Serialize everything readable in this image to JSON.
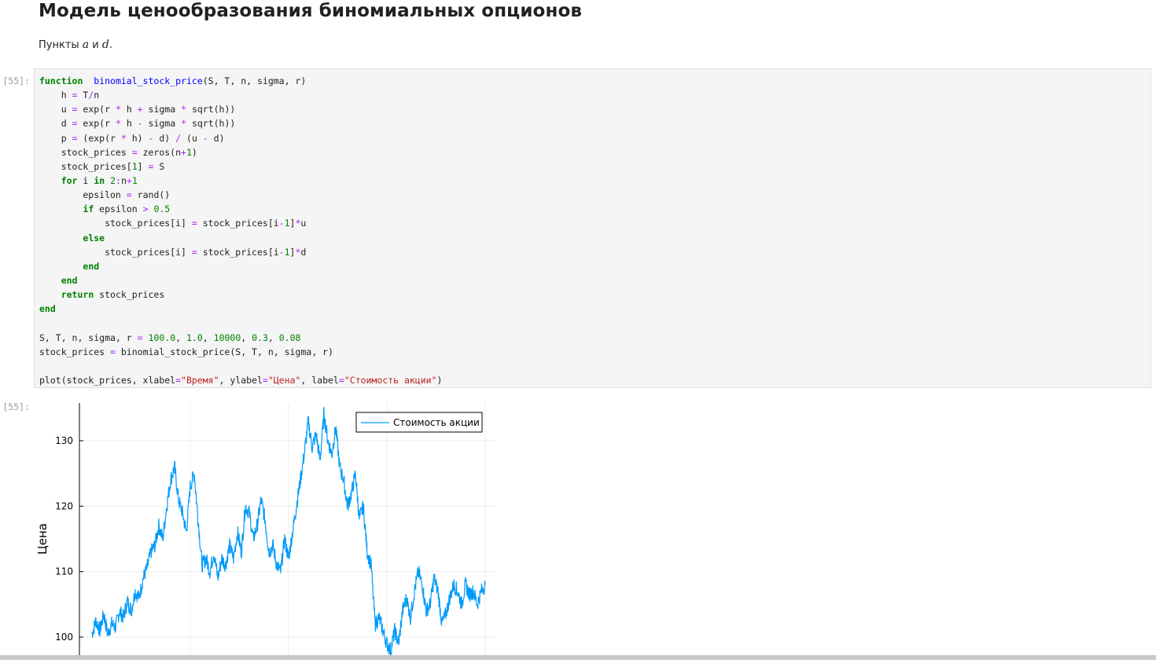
{
  "markdown": {
    "title": "Модель ценообразования биномиальных опционов",
    "paragraph_prefix": "Пункты ",
    "math_a": "a",
    "conj": " и ",
    "math_d": "d",
    "paragraph_suffix": "."
  },
  "cells": [
    {
      "prompt": "[55]:"
    },
    {
      "prompt": "[55]:"
    }
  ],
  "code_lines": [
    [
      [
        "kw",
        "function"
      ],
      [
        "",
        "  "
      ],
      [
        "fn",
        "binomial_stock_price"
      ],
      [
        "",
        "(S, T, n, sigma, r)"
      ]
    ],
    [
      [
        "",
        "    h "
      ],
      [
        "op",
        "="
      ],
      [
        "",
        " T"
      ],
      [
        "op",
        "/"
      ],
      [
        "",
        "n"
      ]
    ],
    [
      [
        "",
        "    u "
      ],
      [
        "op",
        "="
      ],
      [
        "",
        " exp(r "
      ],
      [
        "op",
        "*"
      ],
      [
        "",
        " h "
      ],
      [
        "op",
        "+"
      ],
      [
        "",
        " sigma "
      ],
      [
        "op",
        "*"
      ],
      [
        "",
        " sqrt(h))"
      ]
    ],
    [
      [
        "",
        "    d "
      ],
      [
        "op",
        "="
      ],
      [
        "",
        " exp(r "
      ],
      [
        "op",
        "*"
      ],
      [
        "",
        " h "
      ],
      [
        "op",
        "-"
      ],
      [
        "",
        " sigma "
      ],
      [
        "op",
        "*"
      ],
      [
        "",
        " sqrt(h))"
      ]
    ],
    [
      [
        "",
        "    p "
      ],
      [
        "op",
        "="
      ],
      [
        "",
        " (exp(r "
      ],
      [
        "op",
        "*"
      ],
      [
        "",
        " h) "
      ],
      [
        "op",
        "-"
      ],
      [
        "",
        " d) "
      ],
      [
        "op",
        "/"
      ],
      [
        "",
        " (u "
      ],
      [
        "op",
        "-"
      ],
      [
        "",
        " d)"
      ]
    ],
    [
      [
        "",
        "    stock_prices "
      ],
      [
        "op",
        "="
      ],
      [
        "",
        " zeros(n"
      ],
      [
        "op",
        "+"
      ],
      [
        "num",
        "1"
      ],
      [
        "",
        ")"
      ]
    ],
    [
      [
        "",
        "    stock_prices["
      ],
      [
        "num",
        "1"
      ],
      [
        "",
        "] "
      ],
      [
        "op",
        "="
      ],
      [
        "",
        " S"
      ]
    ],
    [
      [
        "",
        "    "
      ],
      [
        "kw",
        "for"
      ],
      [
        "",
        " i "
      ],
      [
        "kw",
        "in"
      ],
      [
        "",
        " "
      ],
      [
        "num",
        "2"
      ],
      [
        "op",
        ":"
      ],
      [
        "",
        "n"
      ],
      [
        "op",
        "+"
      ],
      [
        "num",
        "1"
      ]
    ],
    [
      [
        "",
        "        epsilon "
      ],
      [
        "op",
        "="
      ],
      [
        "",
        " rand()"
      ]
    ],
    [
      [
        "",
        "        "
      ],
      [
        "kw",
        "if"
      ],
      [
        "",
        " epsilon "
      ],
      [
        "op",
        ">"
      ],
      [
        "",
        " "
      ],
      [
        "num",
        "0.5"
      ]
    ],
    [
      [
        "",
        "            stock_prices[i] "
      ],
      [
        "op",
        "="
      ],
      [
        "",
        " stock_prices[i"
      ],
      [
        "op",
        "-"
      ],
      [
        "num",
        "1"
      ],
      [
        "",
        "]"
      ],
      [
        "op",
        "*"
      ],
      [
        "",
        "u"
      ]
    ],
    [
      [
        "",
        "        "
      ],
      [
        "kw",
        "else"
      ]
    ],
    [
      [
        "",
        "            stock_prices[i] "
      ],
      [
        "op",
        "="
      ],
      [
        "",
        " stock_prices[i"
      ],
      [
        "op",
        "-"
      ],
      [
        "num",
        "1"
      ],
      [
        "",
        "]"
      ],
      [
        "op",
        "*"
      ],
      [
        "",
        "d"
      ]
    ],
    [
      [
        "",
        "        "
      ],
      [
        "kw",
        "end"
      ]
    ],
    [
      [
        "",
        "    "
      ],
      [
        "kw",
        "end"
      ]
    ],
    [
      [
        "",
        "    "
      ],
      [
        "kw",
        "return"
      ],
      [
        "",
        " stock_prices"
      ]
    ],
    [
      [
        "kw",
        "end"
      ]
    ],
    [
      [
        "",
        ""
      ]
    ],
    [
      [
        "",
        "S, T, n, sigma, r "
      ],
      [
        "op",
        "="
      ],
      [
        "",
        " "
      ],
      [
        "num",
        "100.0"
      ],
      [
        "",
        ", "
      ],
      [
        "num",
        "1.0"
      ],
      [
        "",
        ", "
      ],
      [
        "num",
        "10000"
      ],
      [
        "",
        ", "
      ],
      [
        "num",
        "0.3"
      ],
      [
        "",
        ", "
      ],
      [
        "num",
        "0.08"
      ]
    ],
    [
      [
        "",
        "stock_prices "
      ],
      [
        "op",
        "="
      ],
      [
        "",
        " binomial_stock_price(S, T, n, sigma, r)"
      ]
    ],
    [
      [
        "",
        ""
      ]
    ],
    [
      [
        "",
        "plot(stock_prices, xlabel"
      ],
      [
        "op",
        "="
      ],
      [
        "str",
        "\"Время\""
      ],
      [
        "",
        ", ylabel"
      ],
      [
        "op",
        "="
      ],
      [
        "str",
        "\"Цена\""
      ],
      [
        "",
        ", label"
      ],
      [
        "op",
        "="
      ],
      [
        "str",
        "\"Стоимость акции\""
      ],
      [
        "",
        ")"
      ]
    ]
  ],
  "chart_data": {
    "type": "line",
    "xlabel": "",
    "ylabel": "Цена",
    "ylim": [
      98,
      136
    ],
    "xlim": [
      1,
      10001
    ],
    "y_ticks": [
      100,
      110,
      120,
      130
    ],
    "x_gridlines": [
      2500,
      5000,
      7500,
      10000
    ],
    "grid": true,
    "legend_placement": "top-right",
    "series": [
      {
        "name": "Стоимость акции",
        "color": "#009af9",
        "x": [
          1,
          100,
          200,
          300,
          400,
          500,
          600,
          700,
          800,
          900,
          1000,
          1100,
          1200,
          1300,
          1400,
          1500,
          1600,
          1700,
          1800,
          1900,
          2000,
          2100,
          2200,
          2300,
          2400,
          2500,
          2600,
          2700,
          2800,
          2900,
          3000,
          3100,
          3200,
          3300,
          3400,
          3500,
          3600,
          3700,
          3800,
          3900,
          4000,
          4100,
          4200,
          4300,
          4400,
          4500,
          4600,
          4700,
          4800,
          4900,
          5000,
          5100,
          5200,
          5300,
          5400,
          5500,
          5600,
          5700,
          5800,
          5900,
          6000,
          6100,
          6200,
          6300,
          6400,
          6500,
          6600,
          6700,
          6800,
          6900,
          7000,
          7100,
          7200,
          7300,
          7400,
          7500,
          7600,
          7700,
          7800,
          7900,
          8000,
          8100,
          8200,
          8300,
          8400,
          8500,
          8600,
          8700,
          8800,
          8900,
          9000,
          9100,
          9200,
          9300,
          9400,
          9500,
          9600,
          9700,
          9800,
          9900,
          10000
        ],
        "y": [
          100.5,
          102.5,
          101,
          103.5,
          100.5,
          102,
          101.5,
          104,
          103,
          105.5,
          104,
          107,
          106,
          109,
          110.5,
          113,
          114,
          117,
          115,
          120,
          124,
          126,
          121,
          119,
          116,
          123,
          125,
          118,
          111,
          112,
          110,
          113,
          109,
          112,
          111,
          114,
          112,
          116,
          113,
          120,
          119,
          115,
          117,
          121,
          118,
          113,
          114,
          111,
          110,
          115,
          112,
          116,
          120,
          124,
          128,
          133,
          129,
          131,
          127,
          134,
          130,
          128,
          132,
          126,
          124,
          120,
          122,
          125,
          118,
          120,
          113,
          111,
          102,
          103,
          101,
          99,
          98,
          101,
          99,
          104,
          106,
          103,
          107,
          110,
          108,
          104,
          105,
          109,
          107,
          102,
          103.5,
          106,
          108,
          107,
          105,
          108,
          106.5,
          107,
          105,
          107,
          108
        ]
      }
    ]
  }
}
